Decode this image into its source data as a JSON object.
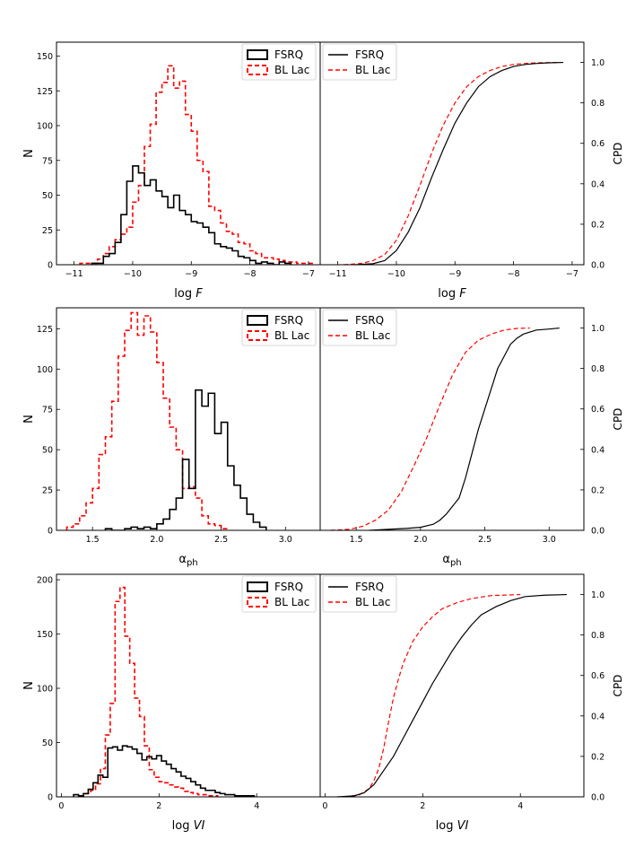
{
  "colors": {
    "fsrq": "#000000",
    "bllac": "#ff0000"
  },
  "legend": {
    "fsrq": "FSRQ",
    "bllac": "BL Lac"
  },
  "chart_data": [
    {
      "type": "histogram+cdf",
      "xlabel_main": "log",
      "xlabel_var": "F",
      "ylabel_left": "N",
      "ylabel_right": "CPD",
      "xlim": [
        -11.3,
        -6.8
      ],
      "ylim_hist": [
        0,
        160
      ],
      "ylim_cdf": [
        0,
        1.1
      ],
      "xticks": [
        -11,
        -10,
        -9,
        -8,
        -7
      ],
      "xtick_labels": [
        "−11",
        "−10",
        "−9",
        "−8",
        "−7"
      ],
      "yticks_hist": [
        0,
        25,
        50,
        75,
        100,
        125,
        150
      ],
      "ytick_labels_hist": [
        "0",
        "25",
        "50",
        "75",
        "100",
        "125",
        "150"
      ],
      "yticks_cdf": [
        0,
        0.2,
        0.4,
        0.6,
        0.8,
        1.0
      ],
      "ytick_labels_cdf": [
        "0.0",
        "0.2",
        "0.4",
        "0.6",
        "0.8",
        "1.0"
      ],
      "fsrq_hist": {
        "start": -10.7,
        "width": 0.1,
        "counts": [
          1,
          1,
          6,
          8,
          16,
          36,
          60,
          71,
          66,
          57,
          61,
          53,
          49,
          41,
          50,
          39,
          36,
          31,
          30,
          27,
          23,
          15,
          13,
          12,
          10,
          6,
          5,
          3,
          1,
          2,
          1,
          0,
          2,
          1
        ]
      },
      "bllac_hist": {
        "start": -10.9,
        "width": 0.1,
        "counts": [
          1,
          1,
          1,
          4,
          8,
          13,
          18,
          22,
          27,
          45,
          57,
          85,
          101,
          124,
          131,
          143,
          127,
          132,
          108,
          96,
          75,
          67,
          42,
          39,
          30,
          24,
          22,
          16,
          15,
          10,
          8,
          5,
          5,
          4,
          3,
          2,
          2,
          1,
          1,
          1
        ]
      },
      "fsrq_cdf": {
        "x": [
          -10.7,
          -10.4,
          -10.2,
          -10.0,
          -9.8,
          -9.6,
          -9.4,
          -9.2,
          -9.0,
          -8.8,
          -8.6,
          -8.4,
          -8.2,
          -8.0,
          -7.8,
          -7.6,
          -7.4,
          -7.15
        ],
        "y": [
          0,
          0.005,
          0.02,
          0.07,
          0.16,
          0.28,
          0.43,
          0.57,
          0.7,
          0.8,
          0.88,
          0.93,
          0.96,
          0.98,
          0.99,
          0.995,
          0.998,
          1.0
        ]
      },
      "bllac_cdf": {
        "x": [
          -10.9,
          -10.6,
          -10.4,
          -10.2,
          -10.0,
          -9.8,
          -9.6,
          -9.4,
          -9.2,
          -9.0,
          -8.8,
          -8.6,
          -8.4,
          -8.2,
          -8.0,
          -7.8,
          -7.6,
          -7.4,
          -7.2
        ],
        "y": [
          0,
          0.006,
          0.02,
          0.05,
          0.12,
          0.24,
          0.39,
          0.55,
          0.69,
          0.8,
          0.88,
          0.93,
          0.96,
          0.98,
          0.99,
          0.995,
          0.998,
          0.999,
          1.0
        ]
      }
    },
    {
      "type": "histogram+cdf",
      "xlabel_main": "α",
      "xlabel_var": "ph",
      "ylabel_left": "N",
      "ylabel_right": "CPD",
      "xlim": [
        1.22,
        3.27
      ],
      "ylim_hist": [
        0,
        138
      ],
      "ylim_cdf": [
        0,
        1.1
      ],
      "xticks": [
        1.5,
        2.0,
        2.5,
        3.0
      ],
      "xtick_labels": [
        "1.5",
        "2.0",
        "2.5",
        "3.0"
      ],
      "yticks_hist": [
        0,
        25,
        50,
        75,
        100,
        125
      ],
      "ytick_labels_hist": [
        "0",
        "25",
        "50",
        "75",
        "100",
        "125"
      ],
      "yticks_cdf": [
        0,
        0.2,
        0.4,
        0.6,
        0.8,
        1.0
      ],
      "ytick_labels_cdf": [
        "0.0",
        "0.2",
        "0.4",
        "0.6",
        "0.8",
        "1.0"
      ],
      "fsrq_hist": {
        "start": 1.6,
        "width": 0.05,
        "counts": [
          1,
          0,
          0,
          1,
          2,
          1,
          2,
          1,
          4,
          7,
          13,
          20,
          44,
          26,
          87,
          77,
          85,
          60,
          67,
          40,
          28,
          20,
          10,
          5,
          2
        ]
      },
      "bllac_hist": {
        "start": 1.3,
        "width": 0.05,
        "counts": [
          2,
          4,
          9,
          17,
          26,
          47,
          58,
          80,
          108,
          124,
          135,
          121,
          133,
          123,
          104,
          82,
          64,
          50,
          26,
          27,
          20,
          9,
          4,
          3,
          1
        ]
      },
      "fsrq_cdf": {
        "x": [
          1.6,
          1.9,
          2.0,
          2.1,
          2.15,
          2.2,
          2.25,
          2.3,
          2.35,
          2.4,
          2.45,
          2.5,
          2.55,
          2.6,
          2.65,
          2.7,
          2.75,
          2.8,
          2.9,
          3.0,
          3.08
        ],
        "y": [
          0,
          0.01,
          0.015,
          0.03,
          0.05,
          0.08,
          0.12,
          0.16,
          0.26,
          0.38,
          0.5,
          0.6,
          0.7,
          0.8,
          0.86,
          0.92,
          0.95,
          0.97,
          0.99,
          0.995,
          1.0
        ]
      },
      "bllac_cdf": {
        "x": [
          1.3,
          1.45,
          1.55,
          1.65,
          1.75,
          1.85,
          1.95,
          2.05,
          2.15,
          2.25,
          2.35,
          2.45,
          2.55,
          2.65,
          2.75,
          2.85
        ],
        "y": [
          0,
          0.005,
          0.02,
          0.05,
          0.1,
          0.19,
          0.32,
          0.46,
          0.62,
          0.77,
          0.88,
          0.94,
          0.97,
          0.99,
          0.998,
          1.0
        ]
      }
    },
    {
      "type": "histogram+cdf",
      "xlabel_main": "log",
      "xlabel_var": "VI",
      "ylabel_left": "N",
      "ylabel_right": "CPD",
      "xlim": [
        -0.1,
        5.3
      ],
      "ylim_hist": [
        0,
        205
      ],
      "ylim_cdf": [
        0,
        1.1
      ],
      "xticks": [
        0,
        2,
        4
      ],
      "xtick_labels": [
        "0",
        "2",
        "4"
      ],
      "yticks_hist": [
        0,
        50,
        100,
        150,
        200
      ],
      "ytick_labels_hist": [
        "0",
        "50",
        "100",
        "150",
        "200"
      ],
      "yticks_cdf": [
        0,
        0.2,
        0.4,
        0.6,
        0.8,
        1.0
      ],
      "ytick_labels_cdf": [
        "0.0",
        "0.2",
        "0.4",
        "0.6",
        "0.8",
        "1.0"
      ],
      "fsrq_hist": {
        "start": 0.25,
        "width": 0.1,
        "counts": [
          2,
          1,
          3,
          7,
          13,
          20,
          18,
          45,
          46,
          43,
          47,
          46,
          44,
          40,
          34,
          37,
          35,
          38,
          33,
          30,
          26,
          23,
          19,
          17,
          14,
          11,
          8,
          6,
          6,
          4,
          3,
          2,
          2,
          1,
          1,
          1,
          1
        ]
      },
      "bllac_hist": {
        "start": 0.4,
        "width": 0.1,
        "counts": [
          1,
          3,
          6,
          12,
          26,
          57,
          86,
          180,
          193,
          148,
          123,
          91,
          74,
          47,
          25,
          18,
          14,
          13,
          11,
          9,
          8,
          5,
          4,
          3,
          2,
          2,
          1,
          1
        ]
      },
      "fsrq_cdf": {
        "x": [
          0.25,
          0.6,
          0.8,
          1.0,
          1.2,
          1.4,
          1.6,
          1.8,
          2.0,
          2.2,
          2.4,
          2.6,
          2.8,
          3.0,
          3.2,
          3.5,
          3.8,
          4.1,
          4.5,
          4.95
        ],
        "y": [
          0,
          0.005,
          0.02,
          0.06,
          0.13,
          0.2,
          0.29,
          0.38,
          0.47,
          0.56,
          0.64,
          0.72,
          0.79,
          0.85,
          0.9,
          0.94,
          0.97,
          0.99,
          0.997,
          1.0
        ]
      },
      "bllac_cdf": {
        "x": [
          0.4,
          0.7,
          0.9,
          1.0,
          1.1,
          1.2,
          1.3,
          1.4,
          1.5,
          1.6,
          1.8,
          2.0,
          2.2,
          2.4,
          2.7,
          3.0,
          3.4,
          4.0
        ],
        "y": [
          0,
          0.01,
          0.04,
          0.08,
          0.14,
          0.24,
          0.37,
          0.49,
          0.58,
          0.66,
          0.77,
          0.84,
          0.89,
          0.93,
          0.96,
          0.98,
          0.995,
          1.0
        ]
      }
    }
  ]
}
